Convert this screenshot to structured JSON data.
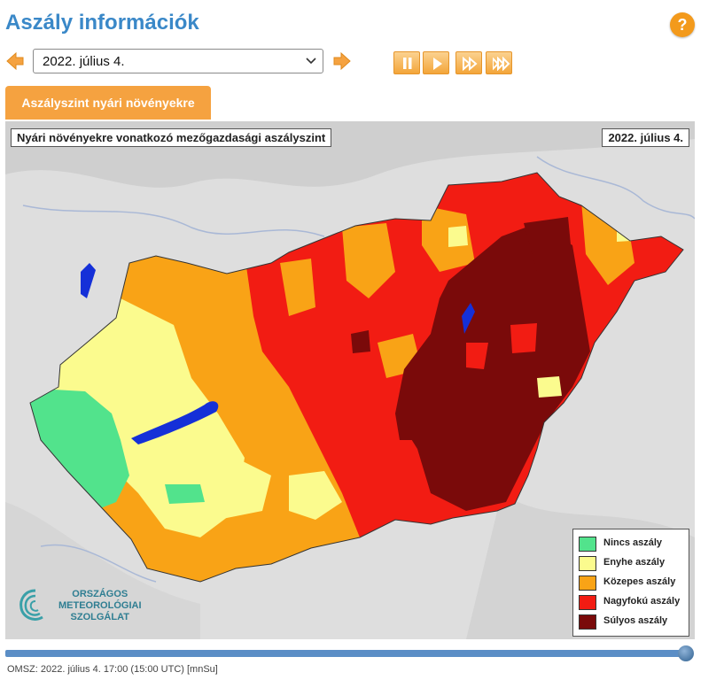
{
  "header": {
    "title": "Aszály információk",
    "help_label": "?"
  },
  "controls": {
    "date_value": "2022. július 4.",
    "prev_icon": "left-arrow-icon",
    "next_icon": "right-arrow-icon",
    "pause_icon": "pause-icon",
    "play_icon": "play-icon",
    "fast_forward_icon": "fast-forward-icon",
    "fastest_forward_icon": "fastest-forward-icon"
  },
  "tab": {
    "label": "Aszályszint nyári növényekre"
  },
  "map": {
    "title": "Nyári növényekre vonatkozó mezőgazdasági aszályszint",
    "date": "2022. július 4.",
    "legend": [
      {
        "label": "Nincs aszály",
        "color": "#52e38c"
      },
      {
        "label": "Enyhe aszály",
        "color": "#fbfb8e"
      },
      {
        "label": "Közepes aszály",
        "color": "#f9a316"
      },
      {
        "label": "Nagyfokú aszály",
        "color": "#f21c13"
      },
      {
        "label": "Súlyos aszály",
        "color": "#7a0a0a"
      }
    ],
    "logo": {
      "line1": "ORSZÁGOS",
      "line2": "METEOROLÓGIAI",
      "line3": "SZOLGÁLAT"
    }
  },
  "footer": {
    "info": "OMSZ: 2022. július 4. 17:00 (15:00  UTC)  [mnSu]"
  },
  "colors": {
    "accent": "#3a88c8",
    "orange": "#f5a240",
    "lake_blue": "#1530d8"
  }
}
